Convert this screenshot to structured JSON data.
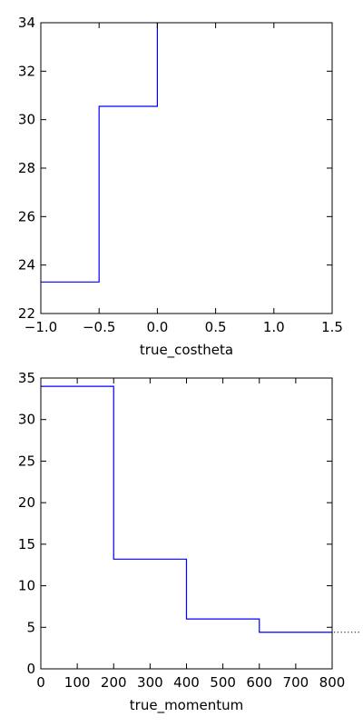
{
  "chart_data": [
    {
      "type": "line",
      "drawstyle": "steps-post",
      "xlabel": "true_costheta",
      "ylabel": "",
      "xlim": [
        -1.0,
        1.5
      ],
      "ylim": [
        22,
        34
      ],
      "xticks": [
        -1.0,
        -0.5,
        0.0,
        0.5,
        1.0,
        1.5
      ],
      "yticks": [
        22,
        24,
        26,
        28,
        30,
        32,
        34
      ],
      "xtick_labels": [
        "−1.0",
        "−0.5",
        "0.0",
        "0.5",
        "1.0",
        "1.5"
      ],
      "ytick_labels": [
        "22",
        "24",
        "26",
        "28",
        "30",
        "32",
        "34"
      ],
      "grid": false,
      "color": "#0000ff",
      "bin_edges": [
        -1.0,
        -0.5,
        0.0
      ],
      "values": [
        23.3,
        30.55
      ],
      "final_level": 34.0
    },
    {
      "type": "line",
      "drawstyle": "steps-post",
      "xlabel": "true_momentum",
      "ylabel": "",
      "xlim": [
        0,
        800
      ],
      "ylim": [
        0,
        35
      ],
      "xticks": [
        0,
        100,
        200,
        300,
        400,
        500,
        600,
        700,
        800
      ],
      "yticks": [
        0,
        5,
        10,
        15,
        20,
        25,
        30,
        35
      ],
      "xtick_labels": [
        "0",
        "100",
        "200",
        "300",
        "400",
        "500",
        "600",
        "700",
        "800"
      ],
      "ytick_labels": [
        "0",
        "5",
        "10",
        "15",
        "20",
        "25",
        "30",
        "35"
      ],
      "grid": false,
      "color": "#0000ff",
      "bin_edges": [
        0,
        200,
        400,
        600,
        800
      ],
      "values": [
        34.0,
        13.2,
        6.0,
        4.4
      ],
      "continues_beyond_axis": true
    }
  ]
}
